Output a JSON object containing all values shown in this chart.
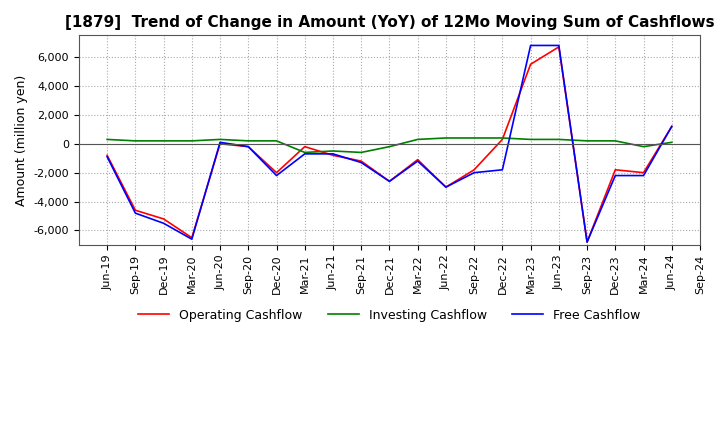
{
  "title": "[1879]  Trend of Change in Amount (YoY) of 12Mo Moving Sum of Cashflows",
  "ylabel": "Amount (million yen)",
  "ylim": [
    -7000,
    7500
  ],
  "yticks": [
    -6000,
    -4000,
    -2000,
    0,
    2000,
    4000,
    6000
  ],
  "x_labels": [
    "Jun-19",
    "Sep-19",
    "Dec-19",
    "Mar-20",
    "Jun-20",
    "Sep-20",
    "Dec-20",
    "Mar-21",
    "Jun-21",
    "Sep-21",
    "Dec-21",
    "Mar-22",
    "Jun-22",
    "Sep-22",
    "Dec-22",
    "Mar-23",
    "Jun-23",
    "Sep-23",
    "Dec-23",
    "Mar-24",
    "Jun-24",
    "Sep-24"
  ],
  "operating": [
    -800,
    -4600,
    -5200,
    -6500,
    0,
    -200,
    -2000,
    -200,
    -800,
    -1200,
    -2600,
    -1100,
    -3000,
    -1800,
    300,
    5500,
    6700,
    -6800,
    -1800,
    -2000,
    1200,
    null
  ],
  "investing": [
    300,
    200,
    200,
    200,
    300,
    200,
    200,
    -600,
    -500,
    -600,
    -200,
    300,
    400,
    400,
    400,
    300,
    300,
    200,
    200,
    -200,
    100,
    null
  ],
  "free": [
    -900,
    -4800,
    -5500,
    -6600,
    100,
    -200,
    -2200,
    -700,
    -700,
    -1300,
    -2600,
    -1200,
    -3000,
    -2000,
    -1800,
    6800,
    6800,
    -6800,
    -2200,
    -2200,
    1200,
    null
  ],
  "operating_color": "#ff0000",
  "investing_color": "#008000",
  "free_color": "#0000ff",
  "background_color": "#ffffff",
  "grid_color": "#aaaaaa",
  "title_fontsize": 11,
  "label_fontsize": 9,
  "tick_fontsize": 8
}
